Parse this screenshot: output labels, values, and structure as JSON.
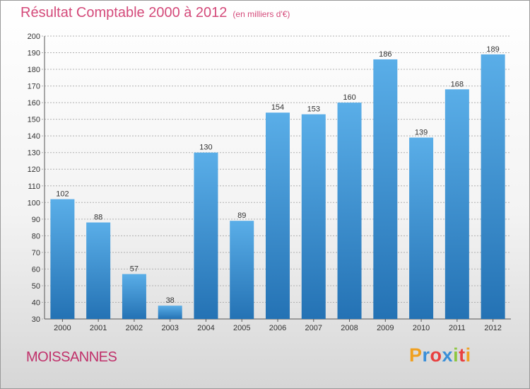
{
  "title": "Résultat Comptable 2000 à 2012",
  "subtitle": "(en milliers d'€)",
  "commune": "MOISSANNES",
  "logo": {
    "text": "Proxiti",
    "letters": [
      {
        "ch": "P",
        "color": "#f0a020"
      },
      {
        "ch": "r",
        "color": "#3a8fd8"
      },
      {
        "ch": "o",
        "color": "#e84040"
      },
      {
        "ch": "x",
        "color": "#3a8fd8"
      },
      {
        "ch": "i",
        "color": "#8cc63f"
      },
      {
        "ch": "t",
        "color": "#e84040"
      },
      {
        "ch": "i",
        "color": "#f0a020"
      }
    ]
  },
  "colors": {
    "title": "#d44a7a",
    "bar_top": "#5aaee8",
    "bar_bottom": "#2472b4",
    "grid": "#b0b0b0"
  },
  "chart_data": {
    "type": "bar",
    "title": "Résultat Comptable 2000 à 2012",
    "subtitle": "(en milliers d'€)",
    "xlabel": "",
    "ylabel": "",
    "categories": [
      "2000",
      "2001",
      "2002",
      "2003",
      "2004",
      "2005",
      "2006",
      "2007",
      "2008",
      "2009",
      "2010",
      "2011",
      "2012"
    ],
    "values": [
      102,
      88,
      57,
      38,
      130,
      89,
      154,
      153,
      160,
      186,
      139,
      168,
      189
    ],
    "ylim": [
      30,
      200
    ],
    "yticks": [
      30,
      40,
      50,
      60,
      70,
      80,
      90,
      100,
      110,
      120,
      130,
      140,
      150,
      160,
      170,
      180,
      190,
      200
    ],
    "grid": true,
    "legend": "none"
  }
}
